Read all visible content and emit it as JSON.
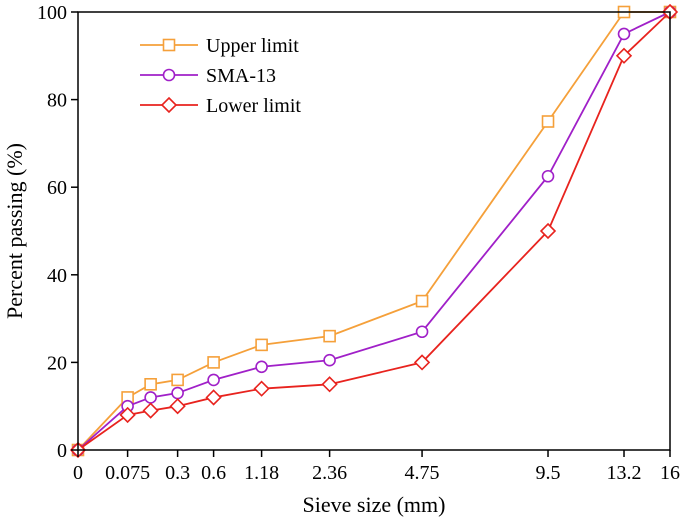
{
  "chart_data": {
    "type": "line",
    "title": "",
    "xlabel": "Sieve size (mm)",
    "ylabel": "Percent passing (%)",
    "x_positions": [
      0,
      0.075,
      0.15,
      0.3,
      0.6,
      1.18,
      2.36,
      4.75,
      9.5,
      13.2,
      16
    ],
    "x_tick_labels": [
      "0",
      "0.075",
      "0.3",
      "0.6",
      "1.18",
      "2.36",
      "4.75",
      "9.5",
      "13.2",
      "16"
    ],
    "x_tick_values": [
      0,
      0.075,
      0.3,
      0.6,
      1.18,
      2.36,
      4.75,
      9.5,
      13.2,
      16
    ],
    "y_ticks": [
      0,
      20,
      40,
      60,
      80,
      100
    ],
    "y_tick_labels": [
      "0",
      "20",
      "40",
      "60",
      "80",
      "100"
    ],
    "ylim": [
      0,
      100
    ],
    "legend_position": "top-left",
    "grid": false,
    "series": [
      {
        "name": "Upper limit",
        "color": "#F5A03A",
        "marker": "square",
        "x": [
          0,
          0.075,
          0.15,
          0.3,
          0.6,
          1.18,
          2.36,
          4.75,
          9.5,
          13.2,
          16
        ],
        "values": [
          0,
          12,
          15,
          16,
          20,
          24,
          26,
          34,
          75,
          100,
          100
        ]
      },
      {
        "name": "SMA-13",
        "color": "#A020C8",
        "marker": "circle",
        "x": [
          0,
          0.075,
          0.15,
          0.3,
          0.6,
          1.18,
          2.36,
          4.75,
          9.5,
          13.2,
          16
        ],
        "values": [
          0,
          10,
          12,
          13,
          16,
          19,
          20.5,
          27,
          62.5,
          95,
          100
        ]
      },
      {
        "name": "Lower limit",
        "color": "#E8231E",
        "marker": "diamond",
        "x": [
          0,
          0.075,
          0.15,
          0.3,
          0.6,
          1.18,
          2.36,
          4.75,
          9.5,
          13.2,
          16
        ],
        "values": [
          0,
          8,
          9,
          10,
          12,
          14,
          15,
          20,
          50,
          90,
          100
        ]
      }
    ]
  }
}
